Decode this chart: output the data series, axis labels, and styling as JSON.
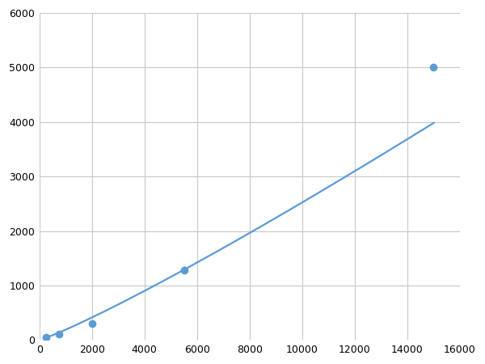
{
  "x": [
    250,
    750,
    2000,
    5500,
    15000
  ],
  "y": [
    55,
    110,
    300,
    1280,
    5000
  ],
  "line_color": "#5b9bd5",
  "marker_color": "#5b9bd5",
  "marker_size": 7,
  "line_width": 1.6,
  "xlim": [
    0,
    16000
  ],
  "ylim": [
    0,
    6000
  ],
  "xticks": [
    0,
    2000,
    4000,
    6000,
    8000,
    10000,
    12000,
    14000,
    16000
  ],
  "yticks": [
    0,
    1000,
    2000,
    3000,
    4000,
    5000,
    6000
  ],
  "grid_color": "#c8c8c8",
  "background_color": "#ffffff",
  "figsize": [
    6.0,
    4.5
  ],
  "dpi": 100
}
